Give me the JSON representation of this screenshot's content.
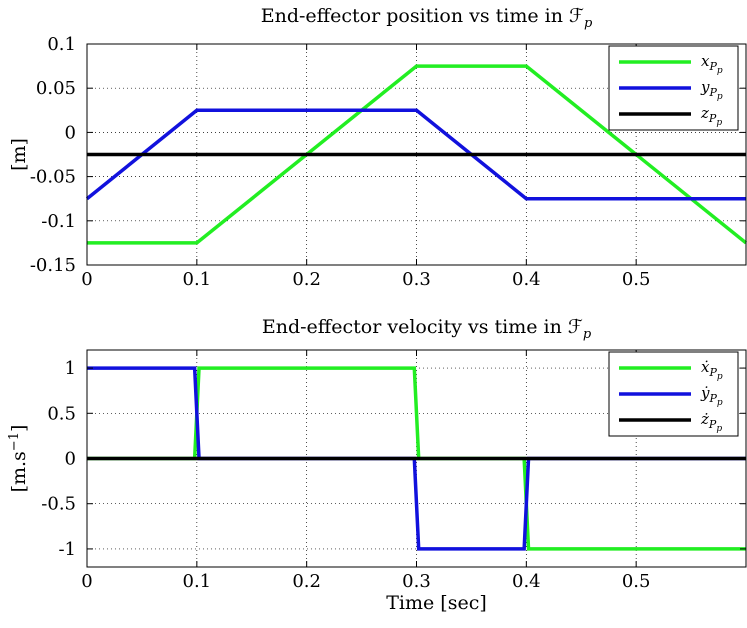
{
  "chart_data": [
    {
      "type": "line",
      "title": "End-effector position vs time in ℱp",
      "xlabel": "",
      "ylabel": "[m]",
      "xlim": [
        0,
        0.6
      ],
      "ylim": [
        -0.15,
        0.1
      ],
      "xticks": [
        "0",
        "0.1",
        "0.2",
        "0.3",
        "0.4",
        "0.5"
      ],
      "xtick_values": [
        0,
        0.1,
        0.2,
        0.3,
        0.4,
        0.5
      ],
      "yticks": [
        "0.1",
        "0.05",
        "0",
        "-0.05",
        "-0.1",
        "-0.15"
      ],
      "ytick_values": [
        0.1,
        0.05,
        0,
        -0.05,
        -0.1,
        -0.15
      ],
      "grid": true,
      "legend_position": "top-right",
      "series": [
        {
          "name": "xPp",
          "color": "#22ee22",
          "x": [
            0,
            0.1,
            0.3,
            0.4,
            0.6
          ],
          "y": [
            -0.125,
            -0.125,
            0.075,
            0.075,
            -0.125
          ]
        },
        {
          "name": "yPp",
          "color": "#1111dd",
          "x": [
            0,
            0.1,
            0.3,
            0.4,
            0.6
          ],
          "y": [
            -0.075,
            0.025,
            0.025,
            -0.075,
            -0.075
          ]
        },
        {
          "name": "zPp",
          "color": "#000000",
          "x": [
            0,
            0.6
          ],
          "y": [
            -0.025,
            -0.025
          ]
        }
      ]
    },
    {
      "type": "line",
      "title": "End-effector velocity vs time in ℱp",
      "xlabel": "Time [sec]",
      "ylabel": "[m.s⁻¹]",
      "xlim": [
        0,
        0.6
      ],
      "ylim": [
        -1.2,
        1.2
      ],
      "xticks": [
        "0",
        "0.1",
        "0.2",
        "0.3",
        "0.4",
        "0.5"
      ],
      "xtick_values": [
        0,
        0.1,
        0.2,
        0.3,
        0.4,
        0.5
      ],
      "yticks": [
        "1",
        "0.5",
        "0",
        "-0.5",
        "-1"
      ],
      "ytick_values": [
        1,
        0.5,
        0,
        -0.5,
        -1
      ],
      "grid": true,
      "legend_position": "top-right",
      "series": [
        {
          "name": "ẋPp",
          "color": "#22ee22",
          "x": [
            0,
            0.098,
            0.102,
            0.298,
            0.302,
            0.398,
            0.402,
            0.6
          ],
          "y": [
            0,
            0,
            1,
            1,
            0,
            0,
            -1,
            -1
          ]
        },
        {
          "name": "ẏPp",
          "color": "#1111dd",
          "x": [
            0,
            0.098,
            0.102,
            0.298,
            0.302,
            0.398,
            0.402,
            0.6
          ],
          "y": [
            1,
            1,
            0,
            0,
            -1,
            -1,
            0,
            0
          ]
        },
        {
          "name": "żPp",
          "color": "#000000",
          "x": [
            0,
            0.6
          ],
          "y": [
            0,
            0
          ]
        }
      ]
    }
  ]
}
